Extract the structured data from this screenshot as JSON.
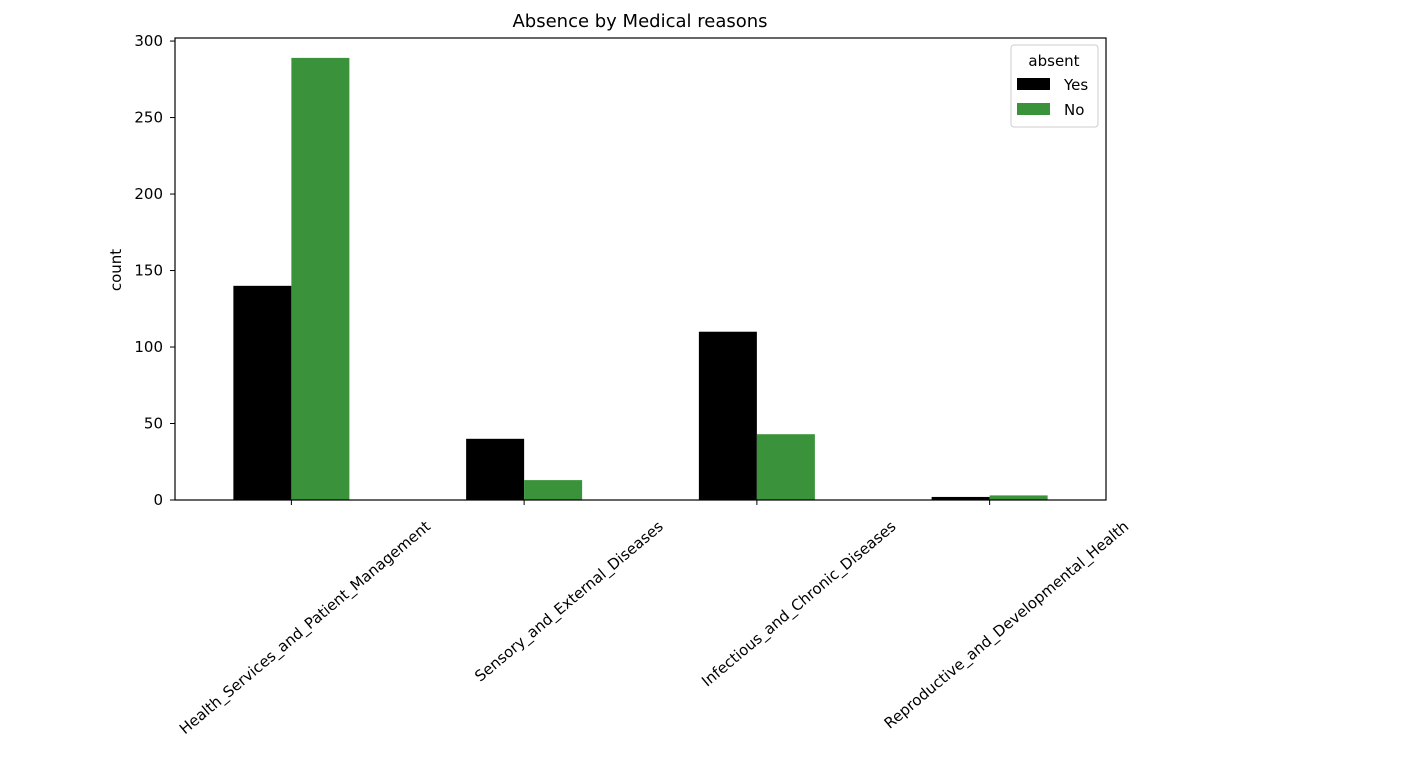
{
  "chart_data": {
    "type": "bar",
    "title": "Absence by Medical reasons",
    "xlabel": "",
    "ylabel": "count",
    "ylim": [
      0,
      302
    ],
    "yticks": [
      0,
      50,
      100,
      150,
      200,
      250,
      300
    ],
    "categories": [
      "Health_Services_and_Patient_Management",
      "Sensory_and_External_Diseases",
      "Infectious_and_Chronic_Diseases",
      "Reproductive_and_Developmental_Health"
    ],
    "series": [
      {
        "name": "Yes",
        "color": "#000000",
        "values": [
          140,
          40,
          110,
          2
        ]
      },
      {
        "name": "No",
        "color": "#3a923a",
        "values": [
          289,
          13,
          43,
          3
        ]
      }
    ],
    "legend": {
      "title": "absent",
      "placement": "top-right"
    },
    "grid": false
  }
}
